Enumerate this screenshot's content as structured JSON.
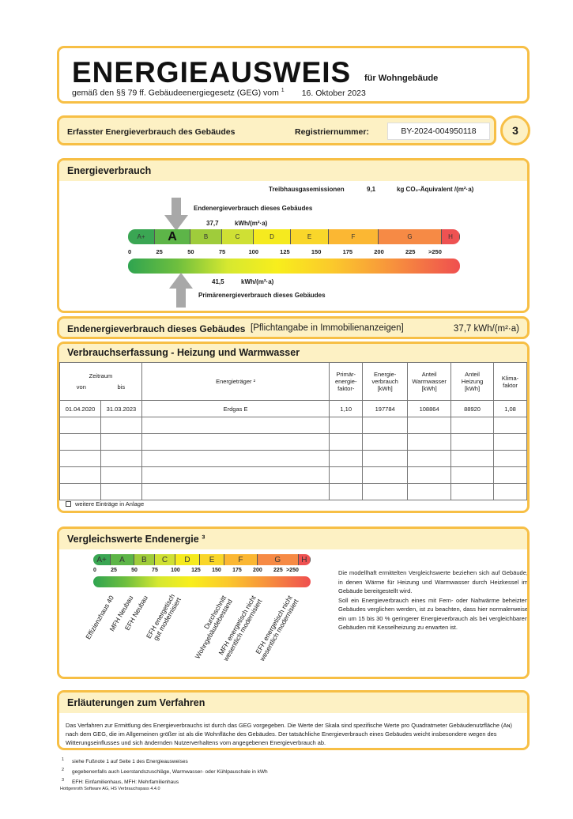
{
  "header": {
    "title": "ENERGIEAUSWEIS",
    "subtitle_building": "für Wohngebäude",
    "legal_basis": "gemäß den §§ 79 ff. Gebäudeenergiegesetz (GEG) vom",
    "footnote_ref": "1",
    "date": "16. Oktober 2023"
  },
  "registration": {
    "label": "Erfasster Energieverbrauch des Gebäudes",
    "reg_label": "Registriernummer:",
    "reg_number": "BY-2024-004950118",
    "page": "3"
  },
  "energy": {
    "title": "Energieverbrauch",
    "ghg_label": "Treibhausgasemissionen",
    "ghg_value": "9,1",
    "ghg_unit": "kg CO₂-Äquivalent /(m²·a)",
    "final_label": "Endenergieverbrauch dieses Gebäudes",
    "final_value": "37,7",
    "final_unit": "kWh/(m²·a)",
    "primary_value": "41,5",
    "primary_unit": "kWh/(m²·a)",
    "primary_label": "Primärenergieverbrauch dieses Gebäudes",
    "final_numeric": 37.7,
    "primary_numeric": 41.5,
    "current_class": "A",
    "classes": [
      "A+",
      "A",
      "B",
      "C",
      "D",
      "E",
      "F",
      "G",
      "H"
    ],
    "ticks": [
      "0",
      "25",
      "50",
      "75",
      "100",
      "125",
      "150",
      "175",
      "200",
      "225",
      ">250"
    ]
  },
  "endline": {
    "label": "Endenergieverbrauch dieses Gebäudes",
    "note": "[Pflichtangabe in Immobilienanzeigen]",
    "value": "37,7 kWh/(m²·a)"
  },
  "consumption": {
    "title": "Verbrauchserfassung - Heizung und Warmwasser",
    "headers": {
      "period": "Zeitraum",
      "from": "von",
      "to": "bis",
      "carrier": "Energieträger ²",
      "pef": "Primär-\nenergie-\nfaktor-",
      "consumption": "Energie-\nverbrauch\n[kWh]",
      "water": "Anteil\nWarmwasser\n[kWh]",
      "heating": "Anteil\nHeizung\n[kWh]",
      "climate": "Klima-\nfaktor"
    },
    "rows": [
      {
        "from": "01.04.2020",
        "to": "31.03.2023",
        "carrier": "Erdgas E",
        "pef": "1,10",
        "consumption": "197784",
        "water": "108864",
        "heating": "88920",
        "climate": "1,08"
      }
    ],
    "more_entries": "weitere Einträge in Anlage"
  },
  "comparison": {
    "title": "Vergleichswerte Endenergie ³",
    "classes": [
      "A+",
      "A",
      "B",
      "C",
      "D",
      "E",
      "F",
      "G",
      "H"
    ],
    "ticks": [
      "0",
      "25",
      "50",
      "75",
      "100",
      "125",
      "150",
      "175",
      "200",
      "225",
      ">250"
    ],
    "labels": [
      "Effizienzhaus 40",
      "MFH Neubau",
      "EFH Neubau",
      "EFH energetisch\ngut modernisiert",
      "Durchschnitt\nWohngebäudebestand",
      "MFH energetisch nicht\nwesentlich modernisiert",
      "EFH energetisch nicht\nwesentlich modernisiert"
    ],
    "text1": "Die modellhaft ermittelten Vergleichswerte beziehen sich auf Gebäude, in denen Wärme für Heizung und Warmwasser durch Heizkessel im Gebäude bereitgestellt wird.",
    "text2": "Soll ein Energieverbrauch eines mit Fern- oder Nahwärme beheizten Gebäudes verglichen werden, ist zu beachten, dass hier normalerweise ein um 15 bis 30 % geringerer Energieverbrauch als bei vergleichbaren Gebäuden mit Kesselheizung zu erwarten ist."
  },
  "explanation": {
    "title": "Erläuterungen zum Verfahren",
    "text": "Das Verfahren zur Ermittlung des Energieverbrauchs ist durch das GEG vorgegeben. Die Werte der Skala sind spezifische Werte pro Quadratmeter Gebäudenutzfläche (Aɴ) nach dem GEG, die im Allgemeinen größer ist als die Wohnfläche des Gebäudes. Der tatsächliche Energieverbrauch eines Gebäudes weicht insbesondere wegen des Witterungseinflusses und sich ändernden Nutzerverhaltens vom angegebenen Energieverbrauch ab."
  },
  "footnotes": [
    {
      "n": "1",
      "text": "siehe Fußnote 1 auf Seite 1 des Energieausweises"
    },
    {
      "n": "2",
      "text": "gegebenenfalls auch Leerstandszuschläge, Warmwasser- oder Kühlpauschale in kWh"
    },
    {
      "n": "3",
      "text": "EFH: Einfamilienhaus, MFH: Mehrfamilienhaus"
    }
  ],
  "software": "Hottgenroth Software AG, HS Verbrauchspass 4.4.0",
  "colors": {
    "border": "#f7bf45",
    "band": "#fdf1c4"
  }
}
